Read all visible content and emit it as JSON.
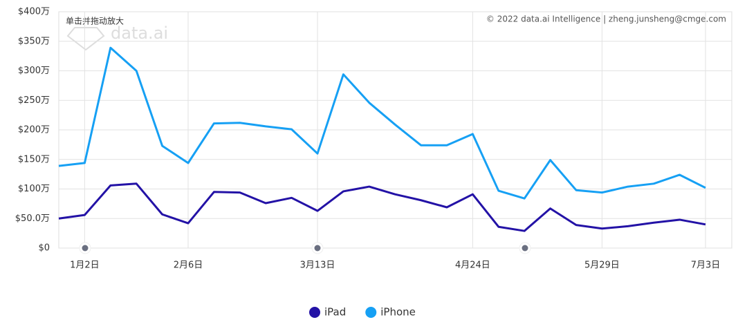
{
  "chart_data": {
    "type": "line",
    "zoom_hint": "单击并拖动放大",
    "watermark": "data.ai",
    "credit": "© 2022 data.ai Intelligence | zheng.junsheng@cmge.com",
    "categories": [
      null,
      "1月2日",
      null,
      null,
      null,
      "2月6日",
      null,
      null,
      null,
      null,
      "3月13日",
      null,
      null,
      null,
      null,
      null,
      "4月24日",
      null,
      null,
      null,
      null,
      "5月29日",
      null,
      null,
      null,
      "7月3日"
    ],
    "series": [
      {
        "name": "iPad",
        "color": "#2312a6",
        "values": [
          50,
          56,
          106,
          109,
          57,
          42,
          95,
          94,
          76,
          85,
          63,
          96,
          104,
          91,
          81,
          69,
          91,
          36,
          29,
          67,
          39,
          33,
          37,
          43,
          48,
          40
        ]
      },
      {
        "name": "iPhone",
        "color": "#16a0f4",
        "values": [
          139,
          144,
          339,
          300,
          173,
          144,
          211,
          212,
          206,
          201,
          160,
          294,
          246,
          209,
          174,
          174,
          193,
          97,
          84,
          149,
          98,
          94,
          104,
          109,
          124,
          102
        ]
      }
    ],
    "ylim": [
      0,
      400
    ],
    "yticks": [
      {
        "value": 0,
        "label": "$0"
      },
      {
        "value": 50,
        "label": "$50.0万"
      },
      {
        "value": 100,
        "label": "$100万"
      },
      {
        "value": 150,
        "label": "$150万"
      },
      {
        "value": 200,
        "label": "$200万"
      },
      {
        "value": 250,
        "label": "$250万"
      },
      {
        "value": 300,
        "label": "$300万"
      },
      {
        "value": 350,
        "label": "$350万"
      },
      {
        "value": 400,
        "label": "$400万"
      }
    ],
    "grid": true
  }
}
